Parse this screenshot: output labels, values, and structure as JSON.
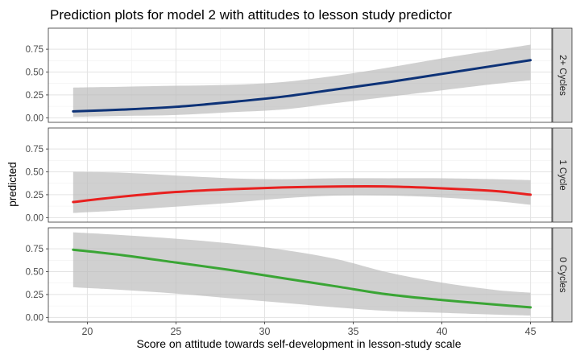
{
  "chart_data": {
    "type": "line",
    "title": "Prediction plots for model 2 with attitudes to lesson study predictor",
    "xlabel": "Score on attitude towards self-development in lesson-study scale",
    "ylabel": "predicted",
    "xlim": [
      17.8,
      46.2
    ],
    "ylim": [
      -0.05,
      0.98
    ],
    "x_ticks": [
      20,
      25,
      30,
      35,
      40,
      45
    ],
    "x_tick_labels": [
      "20",
      "25",
      "30",
      "35",
      "40",
      "45"
    ],
    "y_ticks": [
      0,
      0.25,
      0.5,
      0.75
    ],
    "y_tick_labels": [
      "0.00",
      "0.25",
      "0.50",
      "0.75"
    ],
    "grid": true,
    "x": [
      19.2,
      22,
      25,
      28,
      31,
      34,
      37,
      40,
      43,
      45
    ],
    "panels": [
      {
        "strip": "2+ Cycles",
        "color": "#0d3277",
        "values": [
          0.07,
          0.09,
          0.12,
          0.17,
          0.23,
          0.31,
          0.39,
          0.48,
          0.57,
          0.63
        ],
        "lower": [
          0.01,
          0.02,
          0.03,
          0.06,
          0.09,
          0.16,
          0.23,
          0.3,
          0.37,
          0.41
        ],
        "upper": [
          0.33,
          0.34,
          0.35,
          0.36,
          0.39,
          0.46,
          0.55,
          0.65,
          0.74,
          0.8
        ]
      },
      {
        "strip": "1 Cycle",
        "color": "#e8201f",
        "values": [
          0.17,
          0.23,
          0.28,
          0.31,
          0.33,
          0.34,
          0.34,
          0.32,
          0.29,
          0.25
        ],
        "lower": [
          0.05,
          0.08,
          0.12,
          0.16,
          0.21,
          0.24,
          0.24,
          0.22,
          0.18,
          0.14
        ],
        "upper": [
          0.5,
          0.49,
          0.46,
          0.43,
          0.42,
          0.43,
          0.43,
          0.43,
          0.42,
          0.41
        ]
      },
      {
        "strip": "0 Cycles",
        "color": "#3aa535",
        "values": [
          0.74,
          0.68,
          0.6,
          0.52,
          0.43,
          0.34,
          0.25,
          0.19,
          0.14,
          0.11
        ],
        "lower": [
          0.33,
          0.3,
          0.26,
          0.21,
          0.16,
          0.11,
          0.07,
          0.05,
          0.03,
          0.02
        ],
        "upper": [
          0.93,
          0.9,
          0.86,
          0.81,
          0.74,
          0.64,
          0.49,
          0.38,
          0.3,
          0.27
        ]
      }
    ]
  }
}
